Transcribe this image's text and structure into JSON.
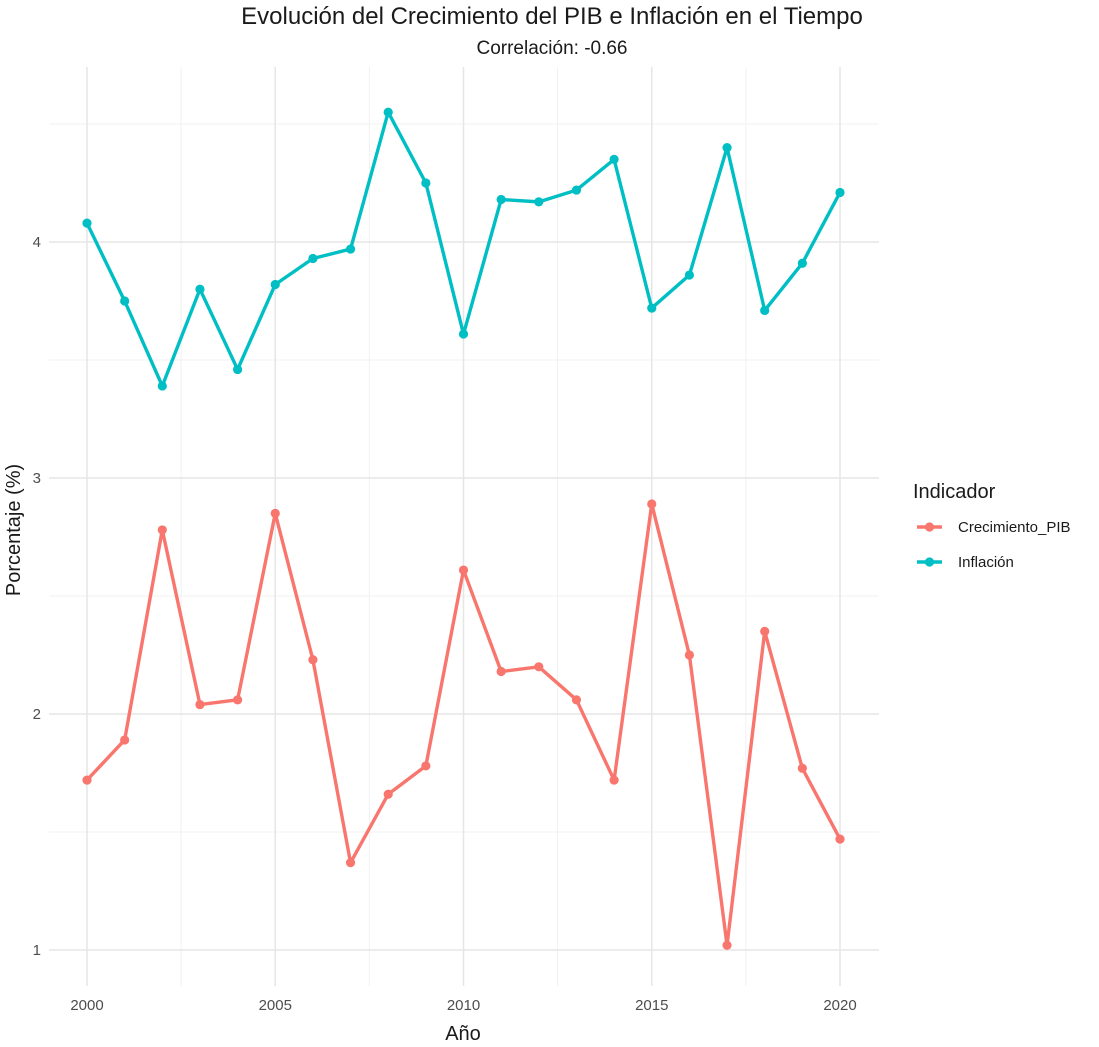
{
  "chart_data": {
    "type": "line",
    "title": "Evolución del Crecimiento del PIB e Inflación en el Tiempo",
    "subtitle": "Correlación: -0.66",
    "xlabel": "Año",
    "ylabel": "Porcentaje (%)",
    "xlim": [
      1999.9,
      2020.9
    ],
    "ylim": [
      0.85,
      4.63
    ],
    "x_ticks": [
      2000,
      2005,
      2010,
      2015,
      2020
    ],
    "y_ticks": [
      1,
      2,
      3,
      4
    ],
    "grid": true,
    "legend": {
      "title": "Indicador",
      "position": "right"
    },
    "x": [
      2000,
      2001,
      2002,
      2003,
      2004,
      2005,
      2006,
      2007,
      2008,
      2009,
      2010,
      2011,
      2012,
      2013,
      2014,
      2015,
      2016,
      2017,
      2018,
      2019,
      2020
    ],
    "series": [
      {
        "name": "Crecimiento_PIB",
        "color": "#F8766D",
        "values": [
          1.72,
          1.89,
          2.78,
          2.04,
          2.06,
          2.85,
          2.23,
          1.37,
          1.66,
          1.78,
          2.61,
          2.18,
          2.2,
          2.06,
          1.72,
          2.89,
          2.25,
          1.02,
          2.35,
          1.77,
          1.47
        ]
      },
      {
        "name": "Inflación",
        "color": "#00BFC4",
        "values": [
          4.08,
          3.75,
          3.39,
          3.8,
          3.46,
          3.82,
          3.93,
          3.97,
          4.55,
          4.25,
          3.61,
          4.18,
          4.17,
          4.22,
          4.35,
          3.72,
          3.86,
          4.4,
          3.71,
          3.91,
          4.21
        ]
      }
    ]
  }
}
